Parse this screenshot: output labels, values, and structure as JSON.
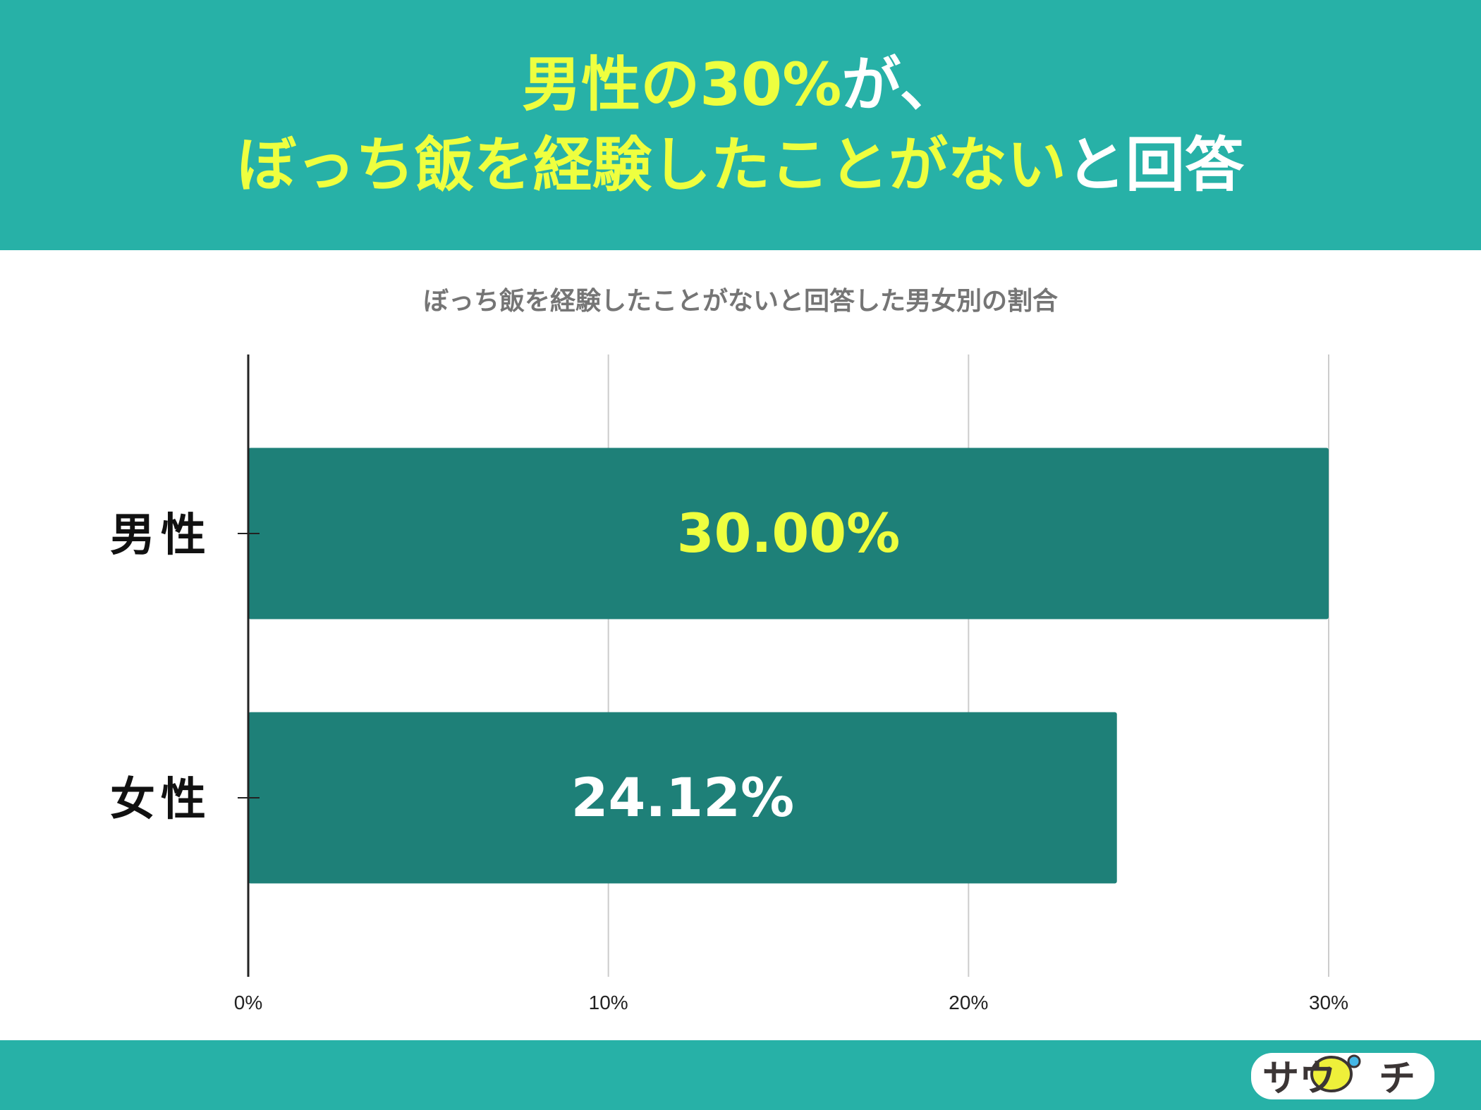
{
  "header": {
    "line1": {
      "yellow": "男性の30%",
      "white": "が、"
    },
    "line2": {
      "yellow": "ぼっち飯を経験したことがない",
      "white": "と回答"
    }
  },
  "logo_text": "サウナーチ",
  "colors": {
    "teal": "#27B1A7",
    "bar": "#1E8078",
    "yellow": "#EEFF3F",
    "white": "#FFFFFF"
  },
  "chart_data": {
    "type": "bar",
    "orientation": "horizontal",
    "title": "ぼっち飯を経験したことがないと回答した男女別の割合",
    "categories": [
      "男性",
      "女性"
    ],
    "values": [
      30.0,
      24.12
    ],
    "data_labels": [
      "30.00%",
      "24.12%"
    ],
    "data_label_colors": [
      "#EEFF3F",
      "#FFFFFF"
    ],
    "xlim": [
      0,
      30
    ],
    "xticks": [
      "0%",
      "10%",
      "20%",
      "30%"
    ],
    "grid": true,
    "legend": "none"
  }
}
